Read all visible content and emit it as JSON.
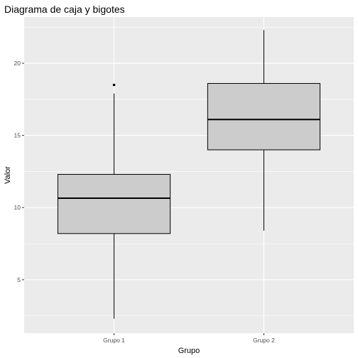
{
  "chart_data": {
    "type": "boxplot",
    "title": "Diagrama de caja y bigotes",
    "xlabel": "Grupo",
    "ylabel": "Valor",
    "categories": [
      "Grupo 1",
      "Grupo 2"
    ],
    "ylim": [
      1.3,
      23.2
    ],
    "yticks": [
      5,
      10,
      15,
      20
    ],
    "boxes": [
      {
        "category": "Grupo 1",
        "whisker_low": 2.3,
        "q1": 8.2,
        "median": 10.65,
        "q3": 12.3,
        "whisker_high": 17.9,
        "outliers": [
          18.5
        ]
      },
      {
        "category": "Grupo 2",
        "whisker_low": 8.4,
        "q1": 14.0,
        "median": 16.1,
        "q3": 18.6,
        "whisker_high": 22.3,
        "outliers": []
      }
    ],
    "grid": true,
    "colors": {
      "panel": "#ebebeb",
      "grid": "#ffffff",
      "box_fill": "#cccccc",
      "box_stroke": "#000000"
    }
  }
}
